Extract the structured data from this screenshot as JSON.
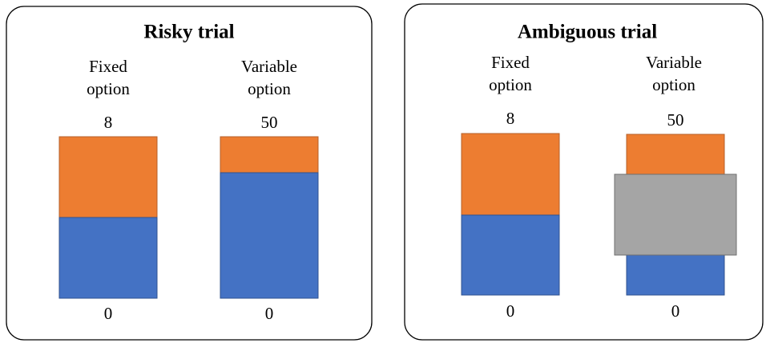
{
  "panels": [
    {
      "title": "Risky trial",
      "options": [
        {
          "label": [
            "Fixed",
            "option"
          ],
          "top": "8",
          "bottom": "0"
        },
        {
          "label": [
            "Variable",
            "option"
          ],
          "top": "50",
          "bottom": "0"
        }
      ]
    },
    {
      "title": "Ambiguous trial",
      "options": [
        {
          "label": [
            "Fixed",
            "option"
          ],
          "top": "8",
          "bottom": "0"
        },
        {
          "label": [
            "Variable",
            "option"
          ],
          "top": "50",
          "bottom": "0"
        }
      ]
    }
  ]
}
